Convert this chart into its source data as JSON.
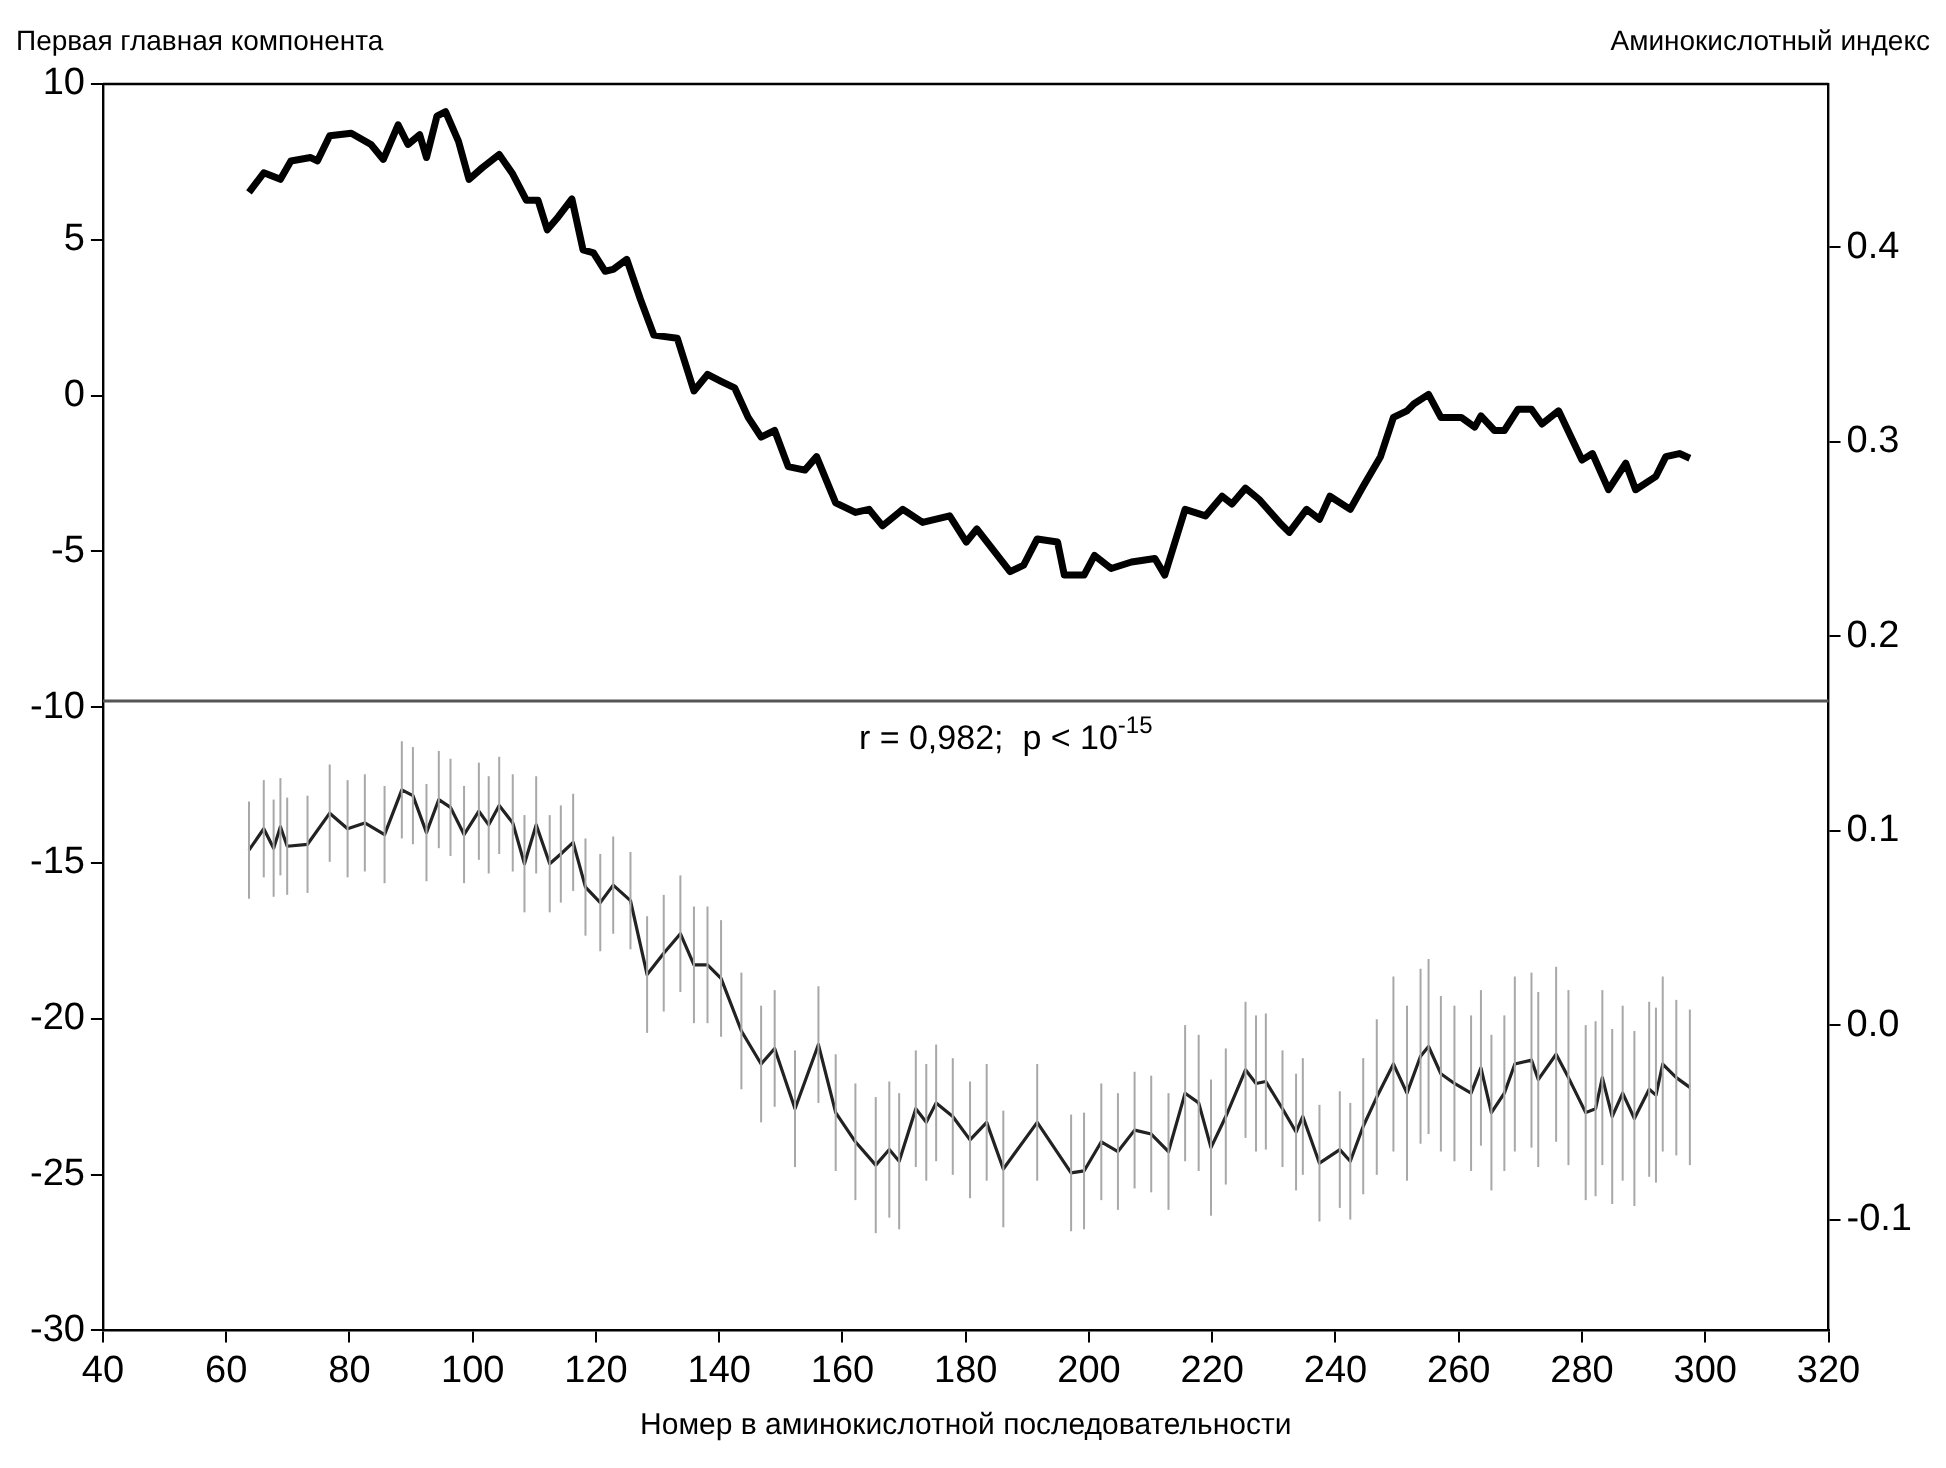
{
  "chart_data": {
    "type": "line",
    "xlabel": "Номер в аминокислотной последовательности",
    "ylabel": "Первая главная компонента",
    "y2label": "Аминокислотный индекс",
    "xlim": [
      40,
      320
    ],
    "xticks": [
      40,
      60,
      80,
      100,
      120,
      140,
      160,
      180,
      200,
      220,
      240,
      260,
      280,
      300,
      320
    ],
    "ylim": [
      -30,
      10
    ],
    "yticks": [
      -30,
      -25,
      -20,
      -15,
      -10,
      -5,
      0,
      5,
      10
    ],
    "y2lim": [
      -0.157,
      0.484
    ],
    "y2ticks": [
      {
        "value": -0.1,
        "label": "-0.1"
      },
      {
        "value": 0,
        "label": "0.0"
      },
      {
        "value": 0.1,
        "label": "0.1"
      },
      {
        "value": 0.2,
        "label": "0.2"
      },
      {
        "value": 0.3,
        "label": "0.3"
      },
      {
        "value": 0.4,
        "label": "0.4"
      }
    ],
    "grid": false,
    "legend": false,
    "marker": "none",
    "line_style": "solid",
    "ref_lines": [
      {
        "axis": "y",
        "value": -9.8,
        "color": "#555555"
      }
    ],
    "annotations": [
      "r = 0,982;  p < 10$^{-15}$"
    ],
    "series": [
      {
        "color": "#000000",
        "x": [
          63.7,
          66.1,
          68.8,
          70.5,
          73.7,
          74.8,
          76.8,
          80.3,
          83.5,
          85.5,
          87.9,
          89.5,
          91.4,
          92.5,
          94.2,
          95.6,
          97.7,
          99.4,
          101.6,
          104.3,
          106.5,
          108.7,
          110.6,
          112.1,
          113.9,
          116.1,
          117.9,
          119.6,
          121.5,
          122.8,
          125,
          127.2,
          129.4,
          133.2,
          135.9,
          138.1,
          140.3,
          142.5,
          144.7,
          146.8,
          149,
          151.2,
          153.9,
          155.8,
          158.9,
          162.1,
          164.3,
          166.5,
          169.8,
          173,
          177.4,
          180.1,
          181.8,
          187.2,
          189.4,
          191.6,
          194.9,
          196,
          199.2,
          200.9,
          203.6,
          206.9,
          210.7,
          212.3,
          215.6,
          218.9,
          221.6,
          223.2,
          225.4,
          227.6,
          230.9,
          232.5,
          235.3,
          237.4,
          239.1,
          242.4,
          244.5,
          247.3,
          249.4,
          251.6,
          252.7,
          255.1,
          257.1,
          260.4,
          262.6,
          263.6,
          265.8,
          267.4,
          269.6,
          271.8,
          273.5,
          276.2,
          280,
          281.7,
          284.3,
          287.1,
          288.7,
          292,
          293.6,
          295.8,
          297.5
        ],
        "values": [
          6.52,
          7.15,
          6.94,
          7.53,
          7.64,
          7.53,
          8.34,
          8.42,
          8.06,
          7.58,
          8.69,
          8.06,
          8.37,
          7.64,
          8.97,
          9.11,
          8.16,
          6.94,
          7.32,
          7.74,
          7.11,
          6.27,
          6.27,
          5.32,
          5.74,
          6.31,
          4.68,
          4.58,
          3.99,
          4.05,
          4.37,
          3.1,
          1.94,
          1.84,
          0.15,
          0.68,
          0.46,
          0.25,
          -0.7,
          -1.33,
          -1.12,
          -2.28,
          -2.39,
          -1.96,
          -3.44,
          -3.75,
          -3.65,
          -4.18,
          -3.65,
          -4.07,
          -3.86,
          -4.7,
          -4.28,
          -5.65,
          -5.44,
          -4.6,
          -4.7,
          -5.76,
          -5.76,
          -5.13,
          -5.55,
          -5.34,
          -5.23,
          -5.76,
          -3.65,
          -3.86,
          -3.23,
          -3.48,
          -2.97,
          -3.33,
          -4.07,
          -4.39,
          -3.65,
          -3.97,
          -3.23,
          -3.65,
          -2.91,
          -1.96,
          -0.7,
          -0.49,
          -0.27,
          0.04,
          -0.7,
          -0.7,
          -1.01,
          -0.65,
          -1.12,
          -1.12,
          -0.44,
          -0.44,
          -0.91,
          -0.49,
          -2.07,
          -1.86,
          -3.02,
          -2.17,
          -3.02,
          -2.59,
          -1.96,
          -1.86,
          -2.01
        ]
      },
      {
        "color": "#222222",
        "axis": "y2",
        "x": [
          63.7,
          66.1,
          67.7,
          68.8,
          69.9,
          73.2,
          76.8,
          79.7,
          82.5,
          85.7,
          88.5,
          90.3,
          92.5,
          94.5,
          96.4,
          98.6,
          101,
          102.6,
          104.3,
          106.5,
          108.4,
          110.3,
          112.5,
          114.3,
          116.3,
          118.3,
          120.7,
          122.8,
          125.6,
          128.3,
          131,
          133.7,
          135.9,
          138.1,
          140.3,
          143.6,
          146.8,
          149,
          152.3,
          156.1,
          158.9,
          162.1,
          165.4,
          167.6,
          169.2,
          171.9,
          173.6,
          175.2,
          177.9,
          180.7,
          183.4,
          186.1,
          191.6,
          197.1,
          199.2,
          202,
          204.7,
          207.4,
          210.1,
          212.9,
          215.6,
          217.8,
          219.8,
          222.2,
          225.4,
          227.1,
          228.7,
          231.4,
          233.6,
          234.7,
          237.4,
          240.7,
          242.4,
          244.5,
          246.7,
          249.4,
          251.6,
          253.8,
          255.1,
          257.1,
          259.3,
          262,
          263.6,
          265.3,
          267.4,
          269.1,
          271.8,
          272.9,
          275.8,
          277.8,
          280.6,
          282.2,
          283.3,
          284.9,
          286.6,
          288.5,
          290.9,
          292,
          293.1,
          295.3,
          297.5
        ],
        "values": [
          0.09,
          0.101,
          0.091,
          0.102,
          0.092,
          0.093,
          0.109,
          0.101,
          0.104,
          0.098,
          0.121,
          0.118,
          0.099,
          0.116,
          0.112,
          0.098,
          0.11,
          0.103,
          0.113,
          0.104,
          0.083,
          0.103,
          0.083,
          0.088,
          0.094,
          0.071,
          0.063,
          0.072,
          0.064,
          0.026,
          0.037,
          0.047,
          0.031,
          0.031,
          0.024,
          -0.003,
          -0.02,
          -0.012,
          -0.043,
          -0.01,
          -0.045,
          -0.06,
          -0.072,
          -0.064,
          -0.07,
          -0.043,
          -0.05,
          -0.04,
          -0.047,
          -0.059,
          -0.05,
          -0.074,
          -0.05,
          -0.076,
          -0.075,
          -0.06,
          -0.065,
          -0.054,
          -0.056,
          -0.065,
          -0.035,
          -0.04,
          -0.063,
          -0.047,
          -0.023,
          -0.03,
          -0.029,
          -0.043,
          -0.055,
          -0.047,
          -0.071,
          -0.064,
          -0.07,
          -0.052,
          -0.037,
          -0.02,
          -0.035,
          -0.016,
          -0.011,
          -0.025,
          -0.03,
          -0.035,
          -0.022,
          -0.045,
          -0.035,
          -0.02,
          -0.018,
          -0.028,
          -0.015,
          -0.027,
          -0.045,
          -0.043,
          -0.027,
          -0.047,
          -0.035,
          -0.048,
          -0.033,
          -0.036,
          -0.02,
          -0.027,
          -0.032
        ],
        "errors": [
          0.025,
          0.025,
          0.025,
          0.025,
          0.025,
          0.025,
          0.025,
          0.025,
          0.025,
          0.025,
          0.025,
          0.025,
          0.025,
          0.025,
          0.025,
          0.025,
          0.025,
          0.025,
          0.025,
          0.025,
          0.025,
          0.025,
          0.025,
          0.025,
          0.025,
          0.025,
          0.025,
          0.025,
          0.025,
          0.03,
          0.03,
          0.03,
          0.03,
          0.03,
          0.03,
          0.03,
          0.03,
          0.03,
          0.03,
          0.03,
          0.03,
          0.03,
          0.035,
          0.035,
          0.035,
          0.03,
          0.03,
          0.03,
          0.03,
          0.03,
          0.03,
          0.03,
          0.03,
          0.03,
          0.03,
          0.03,
          0.03,
          0.03,
          0.03,
          0.03,
          0.035,
          0.035,
          0.035,
          0.035,
          0.035,
          0.035,
          0.035,
          0.03,
          0.03,
          0.03,
          0.03,
          0.03,
          0.03,
          0.035,
          0.04,
          0.045,
          0.045,
          0.045,
          0.045,
          0.04,
          0.04,
          0.04,
          0.04,
          0.04,
          0.04,
          0.045,
          0.045,
          0.045,
          0.045,
          0.045,
          0.045,
          0.045,
          0.045,
          0.045,
          0.045,
          0.045,
          0.045,
          0.045,
          0.045,
          0.04,
          0.04
        ]
      }
    ]
  }
}
